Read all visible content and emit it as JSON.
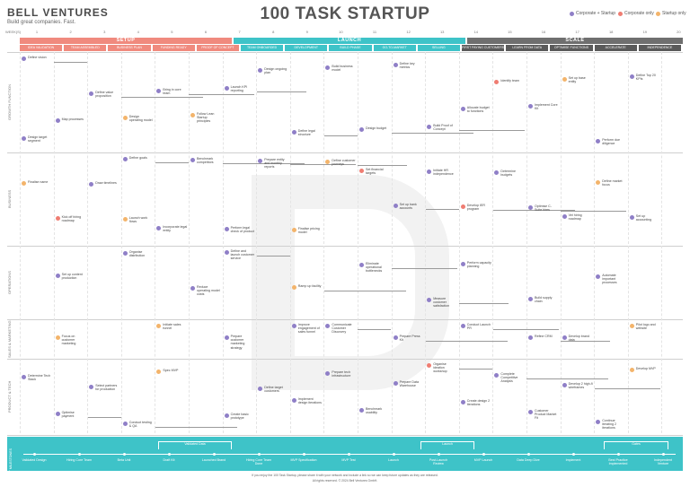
{
  "brand": {
    "name": "BELL VENTURES",
    "tagline": "Build great companies. Fast."
  },
  "title": "100 TASK STARTUP",
  "legend": [
    {
      "label": "Corporate + Startup",
      "color": "#8f7fc7"
    },
    {
      "label": "Corporate only",
      "color": "#ef7d72"
    },
    {
      "label": "Startup only",
      "color": "#f3b46b"
    }
  ],
  "weeks_label": "WEEK(S)",
  "weeks": [
    "1",
    "2",
    "3",
    "4",
    "5",
    "6",
    "7",
    "8",
    "9",
    "10",
    "11",
    "12",
    "13",
    "14",
    "15",
    "16",
    "17",
    "18",
    "19",
    "20"
  ],
  "phases": [
    {
      "label": "SETUP",
      "color": "#f08a7e"
    },
    {
      "label": "LAUNCH",
      "color": "#3ec3c8"
    },
    {
      "label": "SCALE",
      "color": "#6f6f6f"
    }
  ],
  "subphases": [
    "IDEA VALIDATION",
    "TEAM ASSEMBLED",
    "BUSINESS PLAN",
    "FUNDING READY",
    "PROOF OF CONCEPT",
    "TEAM ONBOARDED",
    "DEVELOPMENT",
    "BUILD PHASE",
    "GO-TO-MARKET",
    "SELLING",
    "FIRST PAYING CUSTOMERS",
    "LEARN FROM DATA",
    "OPTIMISE FUNCTIONS",
    "ACCELERATE",
    "INDEPENDENCE"
  ],
  "lanes": [
    "GROWTH FUNCTION",
    "BUSINESS",
    "OPERATIONS",
    "SALES & MARKETING",
    "PRODUCT & TECH"
  ],
  "tasks": [
    {
      "text": "Define vision",
      "c": 0
    },
    {
      "text": "Design ongoing plan",
      "c": 0
    },
    {
      "text": "Identify team",
      "c": 1
    },
    {
      "text": "Define value proposition",
      "c": 0
    },
    {
      "text": "Build business model",
      "c": 0
    },
    {
      "text": "Set up base entity",
      "c": 2
    },
    {
      "text": "Bring in core team",
      "c": 0
    },
    {
      "text": "Define key metrics",
      "c": 0
    },
    {
      "text": "Define Top 20 KPIs",
      "c": 0
    },
    {
      "text": "Launch KPI reporting",
      "c": 0
    },
    {
      "text": "Allocate budget to functions",
      "c": 0
    },
    {
      "text": "Map processes",
      "c": 0
    },
    {
      "text": "Define legal structure",
      "c": 0
    },
    {
      "text": "Implement Core Kit",
      "c": 0
    },
    {
      "text": "Design operating model",
      "c": 2
    },
    {
      "text": "Design budget",
      "c": 0
    },
    {
      "text": "Perform due diligence",
      "c": 0
    },
    {
      "text": "Follow Lean Startup principles",
      "c": 2
    },
    {
      "text": "Build Proof of Concept",
      "c": 0
    },
    {
      "text": "Design target segment",
      "c": 0
    },
    {
      "text": "Define goals",
      "c": 0
    },
    {
      "text": "Set financial targets",
      "c": 1
    },
    {
      "text": "Define market focus",
      "c": 2
    },
    {
      "text": "Benchmark competitors",
      "c": 0
    },
    {
      "text": "Initiate HR independence",
      "c": 0
    },
    {
      "text": "Finalise name",
      "c": 2
    },
    {
      "text": "Prepare entity and monthly reports",
      "c": 0
    },
    {
      "text": "Determine budgets",
      "c": 0
    },
    {
      "text": "Draw timelines",
      "c": 0
    },
    {
      "text": "Define customer journeys",
      "c": 2
    },
    {
      "text": "Vet hiring roadmap",
      "c": 0
    },
    {
      "text": "Incorporate legal entity",
      "c": 0
    },
    {
      "text": "Set up bank accounts",
      "c": 0
    },
    {
      "text": "Set up accounting",
      "c": 0
    },
    {
      "text": "Perform legal check of product",
      "c": 0
    },
    {
      "text": "Develop IER program",
      "c": 1
    },
    {
      "text": "Kick off hiring roadmap",
      "c": 1
    },
    {
      "text": "Finalise pricing model",
      "c": 2
    },
    {
      "text": "Optimise C-Suite hires",
      "c": 0
    },
    {
      "text": "Launch work flows",
      "c": 2
    },
    {
      "text": "Define and launch customer service",
      "c": 0
    },
    {
      "text": "Perform capacity planning",
      "c": 0
    },
    {
      "text": "Set up content production",
      "c": 0
    },
    {
      "text": "Ramp up facility",
      "c": 2
    },
    {
      "text": "Build supply chain",
      "c": 0
    },
    {
      "text": "Organise distribution",
      "c": 0
    },
    {
      "text": "Eliminate operational bottlenecks",
      "c": 0
    },
    {
      "text": "Automate important processes",
      "c": 0
    },
    {
      "text": "Reduce operating model costs",
      "c": 0
    },
    {
      "text": "Measure customer satisfaction",
      "c": 0
    },
    {
      "text": "Communicate Customer Discovery",
      "c": 0
    },
    {
      "text": "Develop brand data",
      "c": 0
    },
    {
      "text": "Initiate sales funnel",
      "c": 2
    },
    {
      "text": "Prepare Press Kit",
      "c": 0
    },
    {
      "text": "Pilot logo and website",
      "c": 2
    },
    {
      "text": "Prepare customer marketing strategy",
      "c": 0
    },
    {
      "text": "Conduct Launch PR",
      "c": 0
    },
    {
      "text": "Focus on customer marketing",
      "c": 2
    },
    {
      "text": "Improve engagement of sales funnel",
      "c": 0
    },
    {
      "text": "Refine CRM",
      "c": 0
    },
    {
      "text": "Organise ideation workshop",
      "c": 1
    },
    {
      "text": "Determine Tech Stack",
      "c": 0
    },
    {
      "text": "Define target customers",
      "c": 0
    },
    {
      "text": "Complete Competitive Analysis",
      "c": 0
    },
    {
      "text": "Select partners for production",
      "c": 0
    },
    {
      "text": "Prepare tech infrastructure",
      "c": 0
    },
    {
      "text": "Develop 2 high-fi wireframes",
      "c": 0
    },
    {
      "text": "Spec MVP",
      "c": 2
    },
    {
      "text": "Prepare Data Warehouse",
      "c": 0
    },
    {
      "text": "Develop MVP",
      "c": 2
    },
    {
      "text": "Create basic prototype",
      "c": 0
    },
    {
      "text": "Create design 2 iterations",
      "c": 0
    },
    {
      "text": "Optimise payment",
      "c": 0
    },
    {
      "text": "Implement design iterations",
      "c": 0
    },
    {
      "text": "Customer Product Market Fit",
      "c": 0
    },
    {
      "text": "Conduct testing & QA",
      "c": 0
    },
    {
      "text": "Benchmark usability",
      "c": 0
    },
    {
      "text": "Continue iterating 2 iterations",
      "c": 0
    }
  ],
  "footer": {
    "lane": "PROJECT MILESTONES",
    "milestones": [
      "Validated Design",
      "Hiring Core Team",
      "Beta Unit",
      "Draft Kit",
      "Launched Brand",
      "Hiring Core Team Done",
      "MVP Specification",
      "MVP Test",
      "Launch",
      "Post-Launch Review",
      "MVP Launch",
      "Data Deep Dive",
      "Implement",
      "Best Practice Implemented",
      "Independent Venture"
    ],
    "brackets": [
      "Validated Data",
      "Launch",
      "Gates"
    ]
  },
  "credits": [
    "If you enjoy the 100 Task Startup, please share it with your network and include a link so we can keep future updates as they are released.",
    "All rights reserved. © 2024 Bell Ventures GmbH."
  ]
}
